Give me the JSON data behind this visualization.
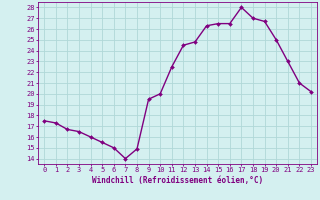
{
  "x": [
    0,
    1,
    2,
    3,
    4,
    5,
    6,
    7,
    8,
    9,
    10,
    11,
    12,
    13,
    14,
    15,
    16,
    17,
    18,
    19,
    20,
    21,
    22,
    23
  ],
  "y": [
    17.5,
    17.3,
    16.7,
    16.5,
    16.0,
    15.5,
    15.0,
    14.0,
    14.9,
    19.5,
    20.0,
    22.5,
    24.5,
    24.8,
    26.3,
    26.5,
    26.5,
    28.0,
    27.0,
    26.7,
    25.0,
    23.0,
    21.0,
    20.2
  ],
  "line_color": "#800080",
  "marker": "D",
  "markersize": 2,
  "linewidth": 1.0,
  "bg_color": "#d4f0f0",
  "grid_color": "#b0d8d8",
  "xlabel": "Windchill (Refroidissement éolien,°C)",
  "xlabel_color": "#800080",
  "tick_color": "#800080",
  "ylabel_ticks": [
    14,
    15,
    16,
    17,
    18,
    19,
    20,
    21,
    22,
    23,
    24,
    25,
    26,
    27,
    28
  ],
  "xlim": [
    -0.5,
    23.5
  ],
  "ylim": [
    13.5,
    28.5
  ],
  "xticks": [
    0,
    1,
    2,
    3,
    4,
    5,
    6,
    7,
    8,
    9,
    10,
    11,
    12,
    13,
    14,
    15,
    16,
    17,
    18,
    19,
    20,
    21,
    22,
    23
  ],
  "xtick_labels": [
    "0",
    "1",
    "2",
    "3",
    "4",
    "5",
    "6",
    "7",
    "8",
    "9",
    "10",
    "11",
    "12",
    "13",
    "14",
    "15",
    "16",
    "17",
    "18",
    "19",
    "20",
    "21",
    "22",
    "23"
  ]
}
